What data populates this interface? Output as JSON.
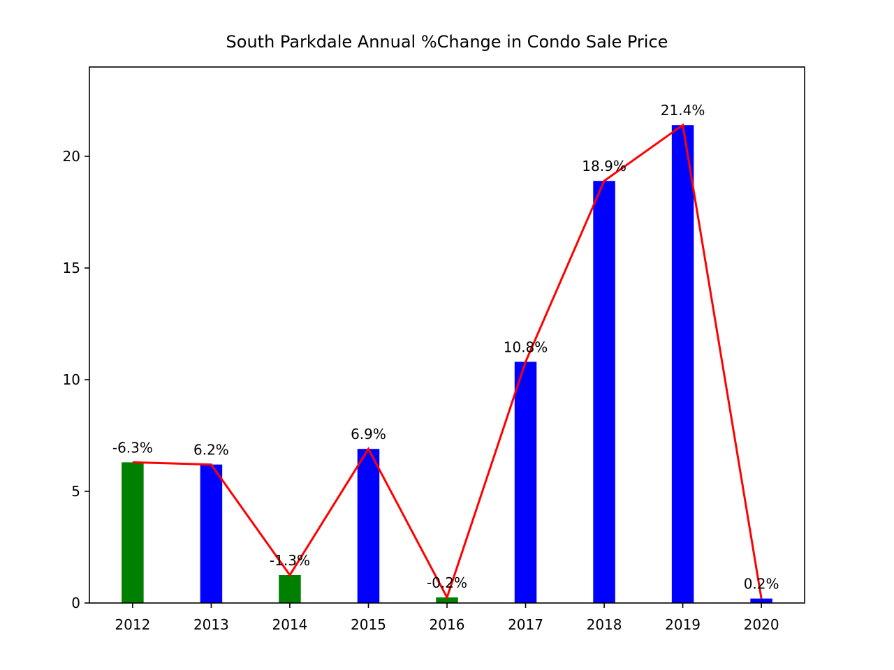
{
  "chart_data": {
    "type": "bar",
    "title": "South Parkdale Annual %Change in Condo Sale Price",
    "xlabel": "",
    "ylabel": "",
    "categories": [
      "2012",
      "2013",
      "2014",
      "2015",
      "2016",
      "2017",
      "2018",
      "2019",
      "2020"
    ],
    "values": [
      6.3,
      6.2,
      1.25,
      6.9,
      0.25,
      10.8,
      18.9,
      21.4,
      0.2
    ],
    "bar_colors": [
      "#008000",
      "#0000ff",
      "#008000",
      "#0000ff",
      "#008000",
      "#0000ff",
      "#0000ff",
      "#0000ff",
      "#0000ff"
    ],
    "data_labels": [
      "-6.3%",
      "6.2%",
      "-1.3%",
      "6.9%",
      "-0.2%",
      "10.8%",
      "18.9%",
      "21.4%",
      "0.2%"
    ],
    "line": {
      "color": "#ff0000",
      "values": [
        6.3,
        6.2,
        1.25,
        6.9,
        0.25,
        10.8,
        18.9,
        21.4,
        0.2
      ]
    },
    "ylim": [
      0,
      24
    ],
    "yticks": [
      0,
      5,
      10,
      15,
      20
    ],
    "grid": false,
    "legend": "none"
  }
}
